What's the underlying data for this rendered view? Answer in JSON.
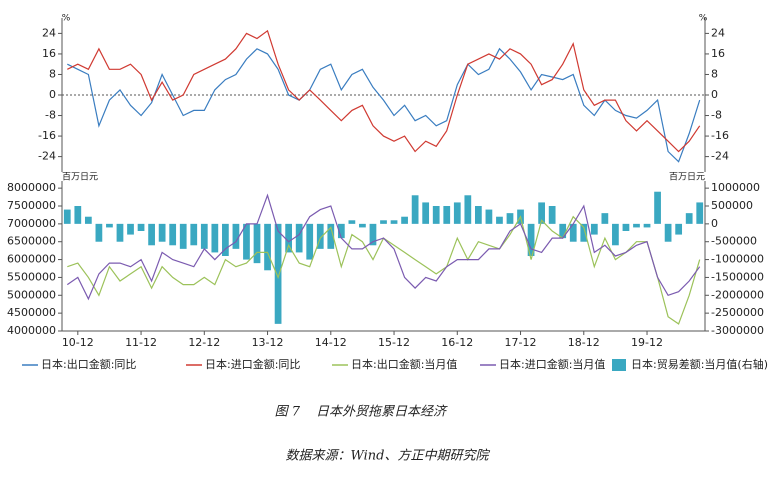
{
  "chart_data": [
    {
      "type": "line",
      "y_unit": "%",
      "ylim": [
        -30,
        30
      ],
      "yticks": [
        -24,
        -16,
        -8,
        0,
        8,
        16,
        24
      ],
      "series": [
        {
          "name": "日本:出口金额:同比",
          "color": "#3a7dc0",
          "values": [
            12,
            10,
            8,
            -12,
            -2,
            2,
            -4,
            -8,
            -3,
            8,
            0,
            -8,
            -6,
            -6,
            2,
            6,
            8,
            14,
            18,
            16,
            10,
            0,
            -2,
            2,
            10,
            12,
            2,
            8,
            10,
            3,
            -2,
            -8,
            -4,
            -10,
            -8,
            -12,
            -10,
            4,
            12,
            8,
            10,
            18,
            14,
            9,
            2,
            8,
            7,
            6,
            8,
            -4,
            -8,
            -2,
            -6,
            -8,
            -9,
            -6,
            -2,
            -22,
            -26,
            -15,
            -2
          ]
        },
        {
          "name": "日本:进口金额:同比",
          "color": "#d03a32",
          "values": [
            10,
            12,
            10,
            18,
            10,
            10,
            12,
            8,
            -2,
            5,
            -2,
            0,
            8,
            10,
            12,
            14,
            18,
            24,
            22,
            25,
            12,
            2,
            -2,
            2,
            -2,
            -6,
            -10,
            -6,
            -4,
            -12,
            -16,
            -18,
            -16,
            -22,
            -18,
            -20,
            -14,
            0,
            12,
            14,
            16,
            14,
            18,
            16,
            12,
            4,
            6,
            12,
            20,
            2,
            -4,
            -2,
            -2,
            -10,
            -14,
            -10,
            -14,
            -18,
            -22,
            -18,
            -12
          ]
        }
      ]
    },
    {
      "type": "combo",
      "y_unit": "百万日元",
      "categories": [
        null,
        "10-12",
        null,
        null,
        null,
        null,
        null,
        "11-12",
        null,
        null,
        null,
        null,
        null,
        "12-12",
        null,
        null,
        null,
        null,
        null,
        "13-12",
        null,
        null,
        null,
        null,
        null,
        "14-12",
        null,
        null,
        null,
        null,
        null,
        "15-12",
        null,
        null,
        null,
        null,
        null,
        "16-12",
        null,
        null,
        null,
        null,
        null,
        "17-12",
        null,
        null,
        null,
        null,
        null,
        "18-12",
        null,
        null,
        null,
        null,
        null,
        "19-12",
        null,
        null,
        null,
        null,
        null
      ],
      "ylim": [
        4000000,
        8200000
      ],
      "yticks": [
        4000000,
        4500000,
        5000000,
        5500000,
        6000000,
        6500000,
        7000000,
        7500000,
        8000000
      ],
      "y2lim": [
        -3000000,
        1200000
      ],
      "y2ticks": [
        -3000000,
        -2500000,
        -2000000,
        -1500000,
        -1000000,
        -500000,
        0,
        500000,
        1000000
      ],
      "series": [
        {
          "name": "日本:出口金额:当月值",
          "color": "#9cc25a",
          "values": [
            5800000,
            5900000,
            5500000,
            5000000,
            5800000,
            5400000,
            5600000,
            5800000,
            5200000,
            5800000,
            5500000,
            5300000,
            5300000,
            5500000,
            5300000,
            6000000,
            5800000,
            5900000,
            6200000,
            6200000,
            5500000,
            6400000,
            5900000,
            5800000,
            6600000,
            6900000,
            5800000,
            6700000,
            6500000,
            6000000,
            6600000,
            6400000,
            6200000,
            6000000,
            5800000,
            5600000,
            5800000,
            6600000,
            6000000,
            6500000,
            6400000,
            6300000,
            6700000,
            7200000,
            6000000,
            7100000,
            6800000,
            6600000,
            7200000,
            6900000,
            5800000,
            6600000,
            6000000,
            6200000,
            6500000,
            6500000,
            5500000,
            4400000,
            4200000,
            5000000,
            6000000
          ]
        },
        {
          "name": "日本:进口金额:当月值",
          "color": "#7b5bb0",
          "values": [
            5300000,
            5500000,
            4900000,
            5600000,
            5900000,
            5900000,
            5800000,
            6000000,
            5400000,
            6200000,
            6000000,
            5900000,
            5800000,
            6300000,
            6000000,
            6300000,
            6500000,
            7000000,
            7000000,
            7800000,
            6800000,
            6500000,
            6700000,
            7200000,
            7400000,
            7500000,
            6600000,
            6300000,
            6300000,
            6500000,
            6600000,
            6300000,
            5500000,
            5200000,
            5500000,
            5400000,
            5800000,
            6000000,
            6000000,
            6000000,
            6300000,
            6300000,
            6800000,
            7000000,
            6300000,
            6200000,
            6600000,
            6600000,
            7000000,
            7500000,
            6200000,
            6400000,
            6100000,
            6200000,
            6400000,
            6500000,
            5500000,
            5000000,
            5100000,
            5400000,
            5800000
          ]
        },
        {
          "name": "日本:贸易差额:当月值(右轴)",
          "color": "#3aa8c1",
          "axis": "y2",
          "values": [
            400000,
            500000,
            200000,
            -500000,
            -100000,
            -500000,
            -300000,
            -200000,
            -600000,
            -500000,
            -600000,
            -700000,
            -600000,
            -700000,
            -800000,
            -900000,
            -700000,
            -1000000,
            -1100000,
            -1300000,
            -2800000,
            -800000,
            -800000,
            -1000000,
            -700000,
            -700000,
            -400000,
            100000,
            -100000,
            -600000,
            100000,
            100000,
            200000,
            800000,
            600000,
            500000,
            500000,
            600000,
            800000,
            500000,
            400000,
            200000,
            300000,
            400000,
            -900000,
            600000,
            500000,
            -400000,
            -500000,
            -500000,
            -300000,
            300000,
            -600000,
            -200000,
            -100000,
            -100000,
            900000,
            -500000,
            -300000,
            300000,
            600000
          ]
        }
      ]
    }
  ],
  "caption": {
    "figure": "图 7",
    "title": "日本外贸拖累日本经济",
    "source": "数据来源：Wind、方正中期研究院"
  }
}
